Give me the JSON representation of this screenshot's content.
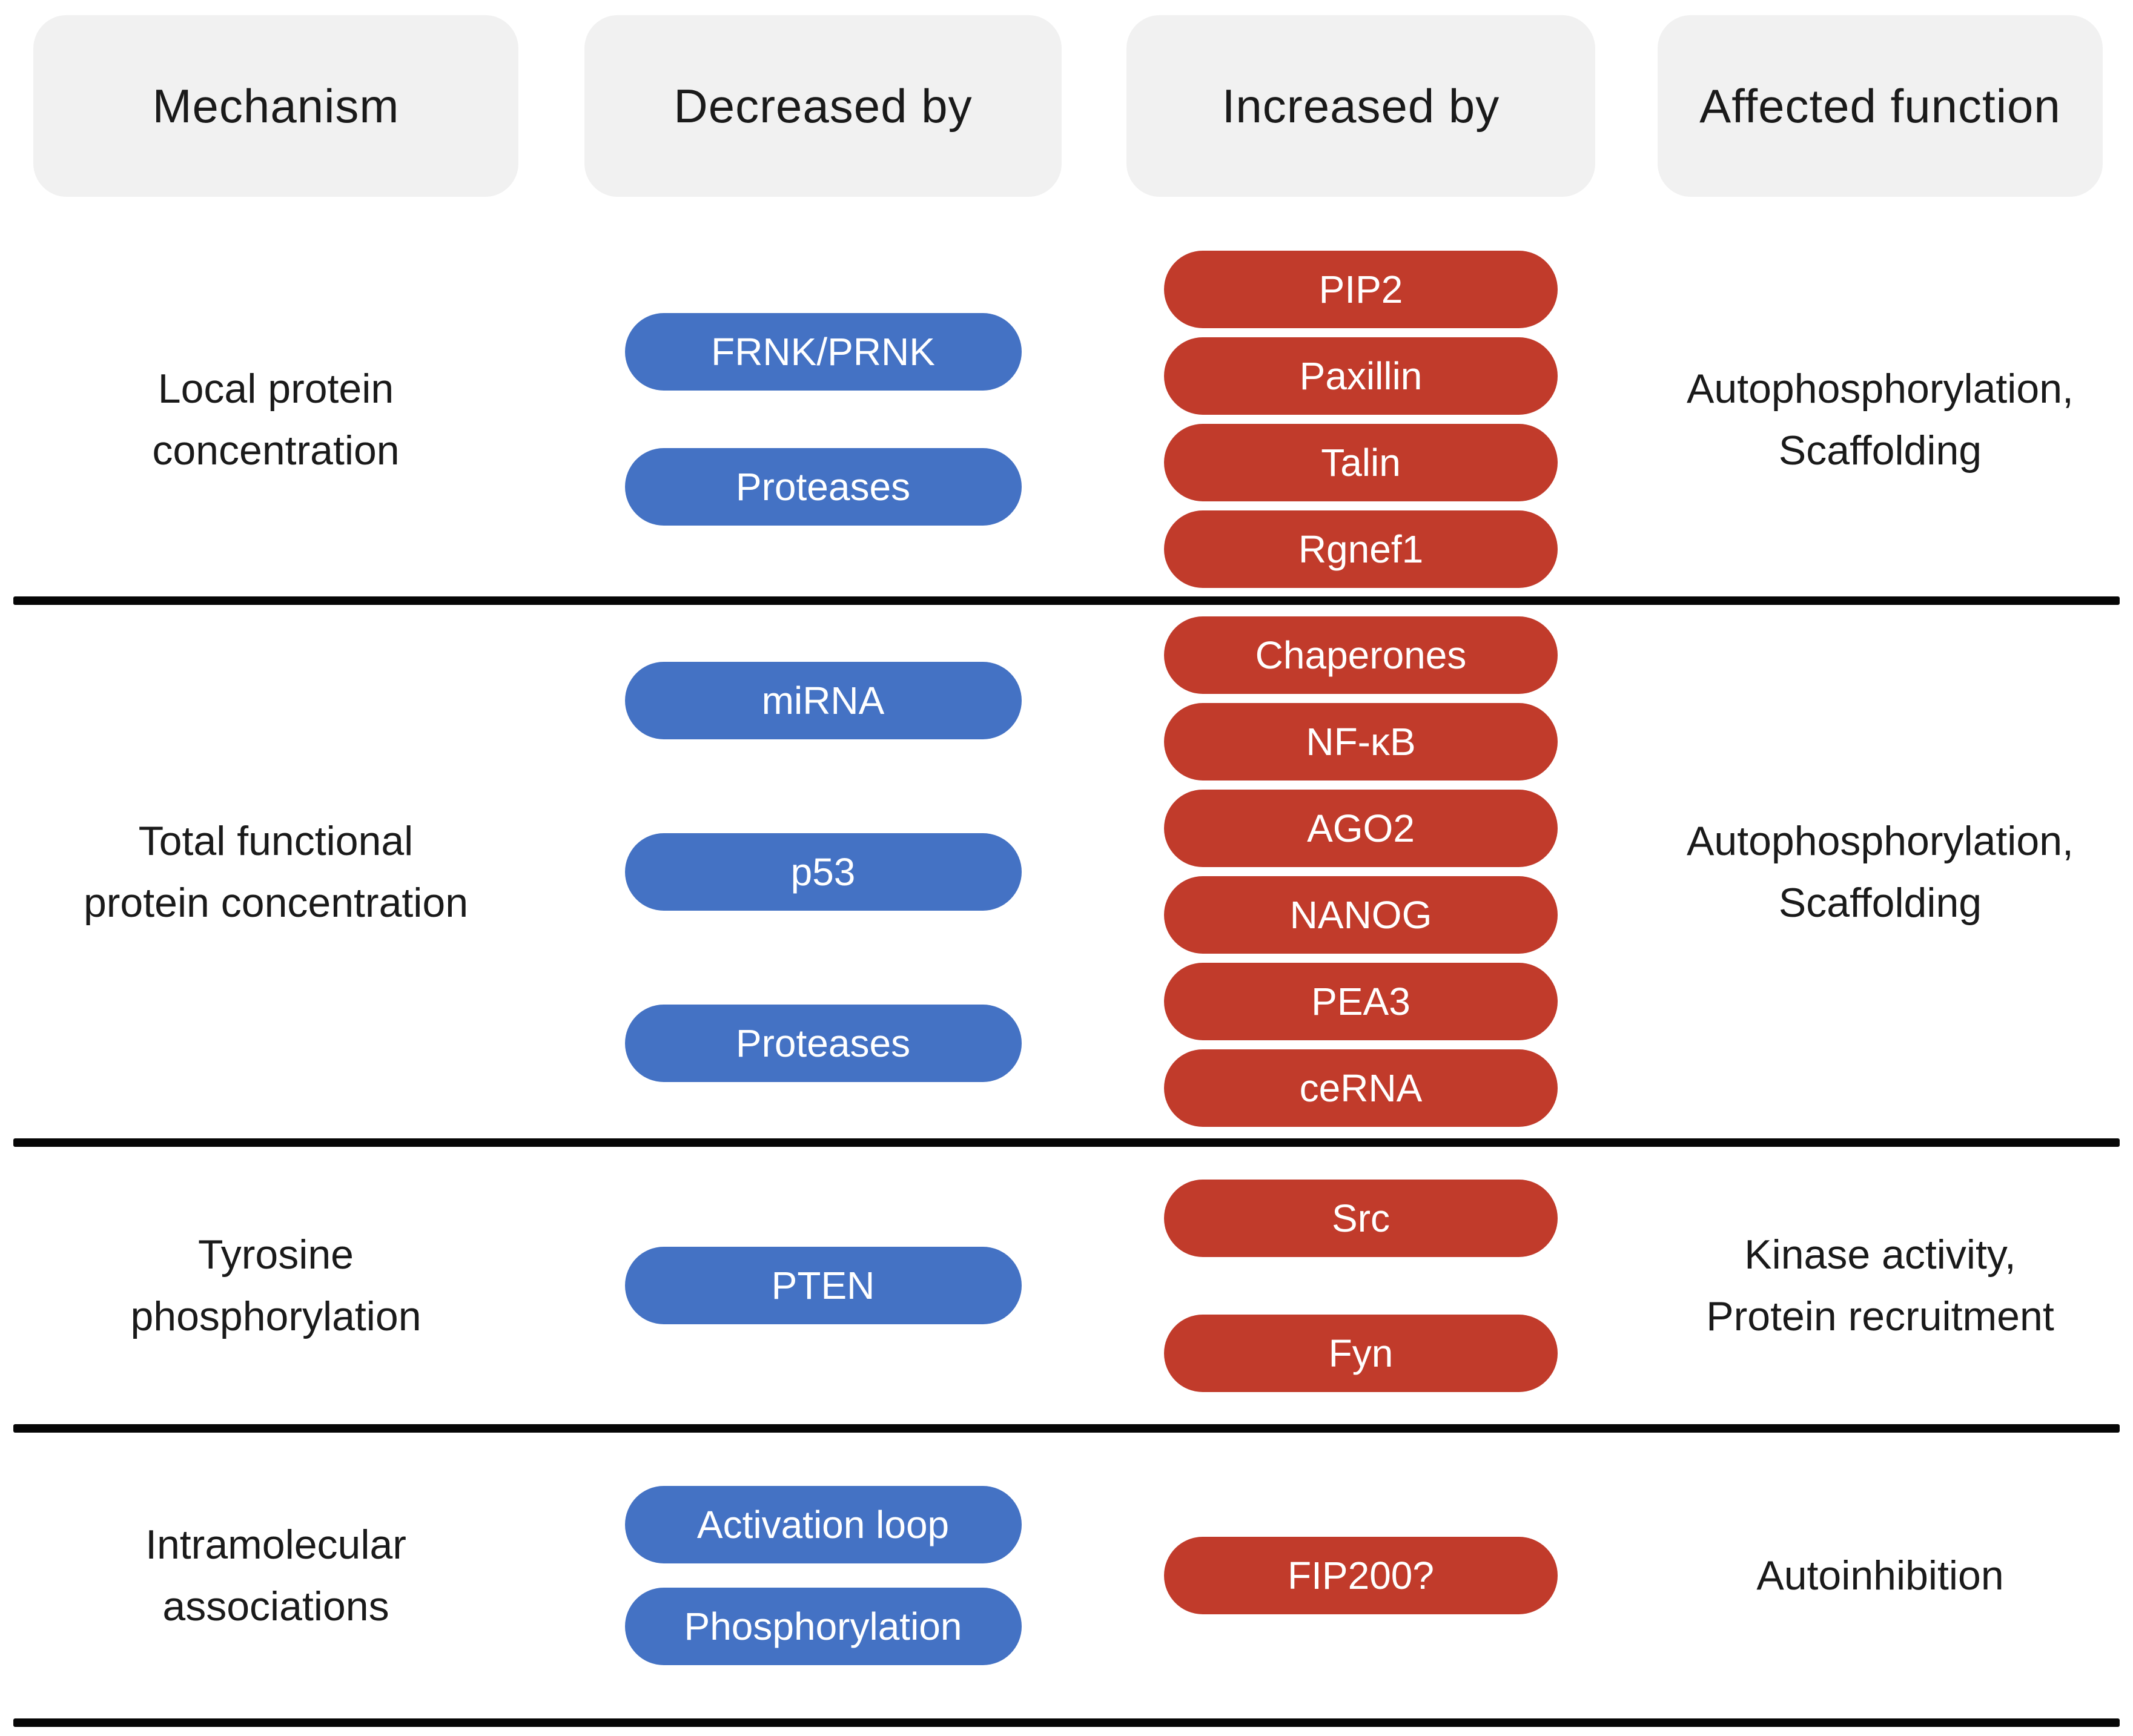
{
  "columns": [
    "Mechanism",
    "Decreased by",
    "Increased by",
    "Affected function"
  ],
  "colors": {
    "decreased_pill": "#4472C4",
    "increased_pill": "#C13B2B",
    "header_bg": "#F1F1F1",
    "divider": "#060606",
    "body_text": "#1A1A1A",
    "pill_text": "#FFFFFF"
  },
  "rows": [
    {
      "mechanism": "Local protein\nconcentration",
      "decreased": [
        "FRNK/PRNK",
        "Proteases"
      ],
      "increased": [
        "PIP2",
        "Paxillin",
        "Talin",
        "Rgnef1"
      ],
      "affected": "Autophosphorylation,\nScaffolding"
    },
    {
      "mechanism": "Total functional\nprotein concentration",
      "decreased": [
        "miRNA",
        "p53",
        "Proteases"
      ],
      "increased": [
        "Chaperones",
        "NF-κB",
        "AGO2",
        "NANOG",
        "PEA3",
        "ceRNA"
      ],
      "affected": "Autophosphorylation,\nScaffolding"
    },
    {
      "mechanism": "Tyrosine\nphosphorylation",
      "decreased": [
        "PTEN"
      ],
      "increased": [
        "Src",
        "Fyn"
      ],
      "affected": "Kinase activity,\nProtein recruitment"
    },
    {
      "mechanism": "Intramolecular\nassociations",
      "decreased": [
        "Activation loop",
        "Phosphorylation"
      ],
      "increased": [
        "FIP200?"
      ],
      "affected": "Autoinhibition"
    }
  ]
}
